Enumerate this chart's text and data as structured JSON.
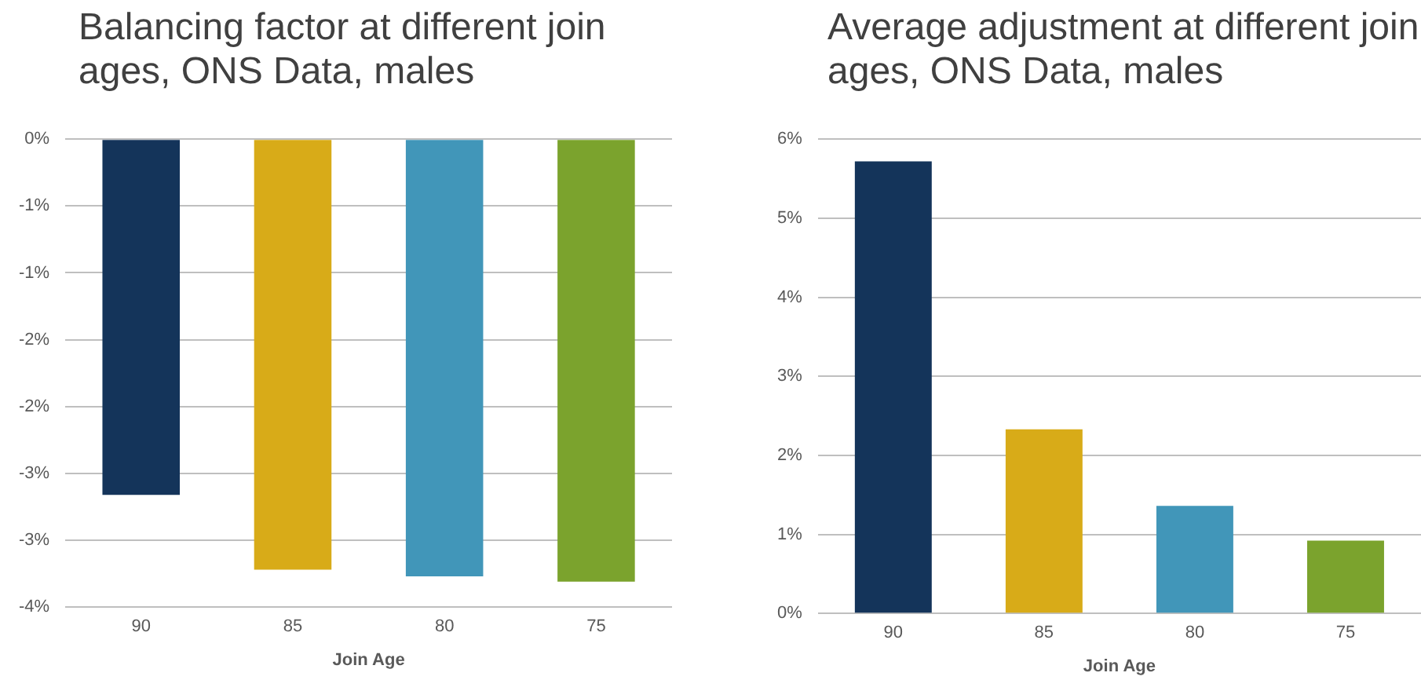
{
  "chart_data": [
    {
      "type": "bar",
      "title": "Balancing factor at different join ages, ONS Data, males",
      "xlabel": "Join Age",
      "categories": [
        "90",
        "85",
        "80",
        "75"
      ],
      "values": [
        -2.66,
        -3.22,
        -3.27,
        -3.31
      ],
      "colors": [
        "#14345a",
        "#d8ab18",
        "#4196b9",
        "#7ba32d"
      ],
      "ylim": [
        -3.5,
        0
      ],
      "yticks": [
        {
          "value": 0,
          "label": "0%"
        },
        {
          "value": -0.5,
          "label": "-1%"
        },
        {
          "value": -1,
          "label": "-1%"
        },
        {
          "value": -1.5,
          "label": "-2%"
        },
        {
          "value": -2,
          "label": "-2%"
        },
        {
          "value": -2.5,
          "label": "-3%"
        },
        {
          "value": -3,
          "label": "-3%"
        },
        {
          "value": -3.5,
          "label": "-4%"
        }
      ],
      "grid": "y"
    },
    {
      "type": "bar",
      "title": "Average adjustment at different join ages, ONS Data, males",
      "xlabel": "Join Age",
      "categories": [
        "90",
        "85",
        "80",
        "75"
      ],
      "values": [
        5.72,
        2.33,
        1.36,
        0.92
      ],
      "colors": [
        "#14345a",
        "#d8ab18",
        "#4196b9",
        "#7ba32d"
      ],
      "ylim": [
        0,
        6
      ],
      "yticks": [
        {
          "value": 0,
          "label": "0%"
        },
        {
          "value": 1,
          "label": "1%"
        },
        {
          "value": 2,
          "label": "2%"
        },
        {
          "value": 3,
          "label": "3%"
        },
        {
          "value": 4,
          "label": "4%"
        },
        {
          "value": 5,
          "label": "5%"
        },
        {
          "value": 6,
          "label": "6%"
        }
      ],
      "grid": "y"
    }
  ]
}
